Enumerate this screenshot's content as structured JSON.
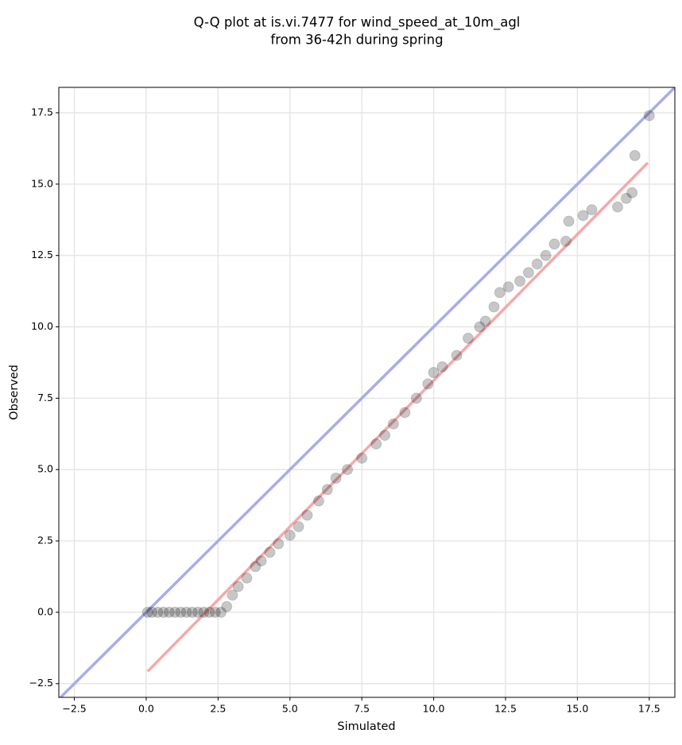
{
  "chart_data": {
    "type": "scatter",
    "title": [
      "Q-Q plot at is.vi.7477 for wind_speed_at_10m_agl",
      "from 36-42h during spring"
    ],
    "xlabel": "Simulated",
    "ylabel": "Observed",
    "xlim": [
      -3.04,
      18.39
    ],
    "ylim": [
      -2.98,
      18.39
    ],
    "xticks": [
      {
        "value": -2.5,
        "label": "−2.5"
      },
      {
        "value": 0,
        "label": "0.0"
      },
      2.5,
      {
        "value": 5,
        "label": "5.0"
      },
      7.5,
      {
        "value": 10,
        "label": "10.0"
      },
      12.5,
      {
        "value": 15,
        "label": "15.0"
      },
      17.5
    ],
    "yticks": [
      {
        "value": -2.5,
        "label": "−2.5"
      },
      {
        "value": 0,
        "label": "0.0"
      },
      2.5,
      {
        "value": 5,
        "label": "5.0"
      },
      7.5,
      {
        "value": 10,
        "label": "10.0"
      },
      12.5,
      {
        "value": 15,
        "label": "15.0"
      },
      17.5
    ],
    "grid": true,
    "series": [
      {
        "type": "line",
        "color": "#aaaaf0",
        "x": [
          -3.04,
          18.39
        ],
        "values": [
          -3.04,
          18.39
        ]
      },
      {
        "type": "line",
        "color": "#f7a8a8",
        "x": [
          0.05,
          17.45
        ],
        "values": [
          -2.07,
          15.75
        ]
      },
      {
        "type": "scatter",
        "color": "#000000",
        "x": [
          0.05,
          0.2,
          0.4,
          0.6,
          0.8,
          1.0,
          1.2,
          1.4,
          1.6,
          1.8,
          2.0,
          2.2,
          2.4,
          2.6,
          2.8,
          3.0,
          3.2,
          3.5,
          3.8,
          4.0,
          4.3,
          4.6,
          5.0,
          5.3,
          5.6,
          6.0,
          6.3,
          6.6,
          7.0,
          7.5,
          8.0,
          8.3,
          8.6,
          9.0,
          9.4,
          9.8,
          10.0,
          10.3,
          10.8,
          11.2,
          11.6,
          11.8,
          12.1,
          12.3,
          12.6,
          13.0,
          13.3,
          13.6,
          13.9,
          14.2,
          14.6,
          14.7,
          15.2,
          15.5,
          16.4,
          16.7,
          16.9,
          17.0,
          17.5
        ],
        "values": [
          0,
          0,
          0,
          0,
          0,
          0,
          0,
          0,
          0,
          0,
          0,
          0,
          0,
          0,
          0.2,
          0.6,
          0.9,
          1.2,
          1.6,
          1.8,
          2.1,
          2.4,
          2.7,
          3.0,
          3.4,
          3.9,
          4.3,
          4.7,
          5.0,
          5.4,
          5.9,
          6.2,
          6.6,
          7.0,
          7.5,
          8.0,
          8.4,
          8.6,
          9.0,
          9.6,
          10.0,
          10.2,
          10.7,
          11.2,
          11.4,
          11.6,
          11.9,
          12.2,
          12.5,
          12.9,
          13.0,
          13.7,
          13.9,
          14.1,
          14.2,
          14.5,
          14.7,
          16.0,
          17.4
        ]
      }
    ]
  }
}
